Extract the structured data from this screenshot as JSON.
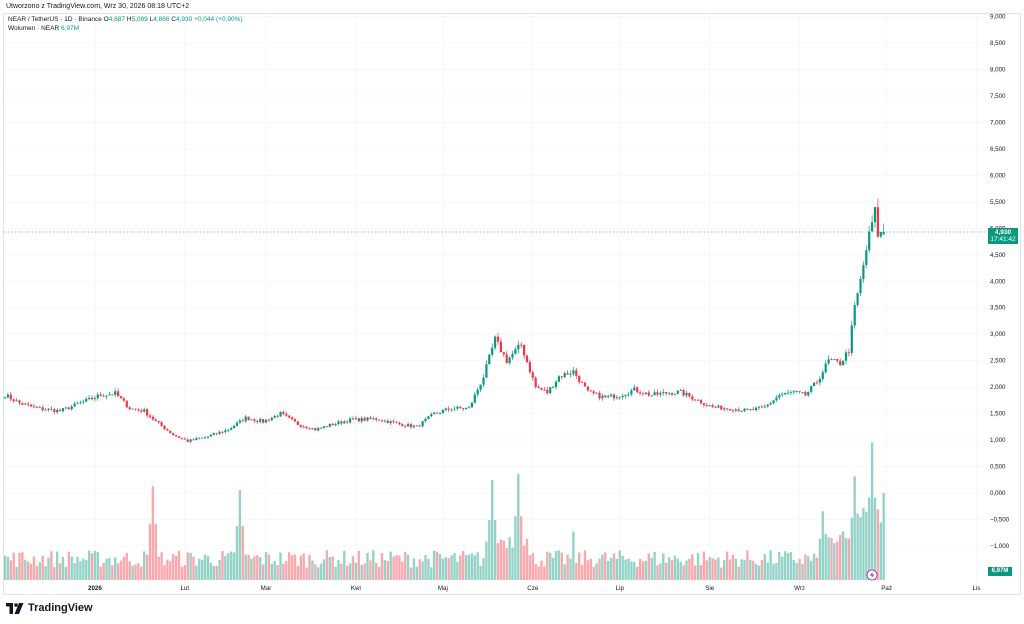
{
  "caption": "Utworzono z TradingView.com, Wrz 30, 2026 08:18 UTC+2",
  "legend": {
    "symbol": "NEAR / TetherUS · 1D · Binance",
    "o_label": "O",
    "o": "4,887",
    "h_label": "H",
    "h": "5,089",
    "l_label": "L",
    "l": "4,866",
    "c_label": "C",
    "c": "4,930",
    "change": "+0,044 (+0,90%)",
    "volume_label": "Wolumen · NEAR",
    "volume_value": "6,97M"
  },
  "last_price_tag": "4,930",
  "countdown": "17:41:42",
  "volume_tag": "6,97M",
  "logo_text": "TradingView",
  "colors": {
    "up": "#089981",
    "down": "#f23645",
    "vol_up": "#95d3c8",
    "vol_down": "#f7a9ae",
    "grid": "#f0f3fa",
    "axis_text": "#131722"
  },
  "icons": [
    "tradingview-logo-icon",
    "lightning-icon"
  ],
  "chart_data": {
    "type": "candlestick",
    "symbol": "NEAR / TetherUS",
    "interval": "1D",
    "exchange": "Binance",
    "y_ticks": [
      "9,000",
      "8,500",
      "8,000",
      "7,500",
      "7,000",
      "6,500",
      "6,000",
      "5,500",
      "5,000",
      "4,500",
      "4,000",
      "3,500",
      "3,000",
      "2,500",
      "2,000",
      "1,500",
      "1,000",
      "0,500",
      "0,000",
      "−0,500",
      "−1,000"
    ],
    "x_ticks": [
      "2026",
      "Lut",
      "Mar",
      "Kwi",
      "Maj",
      "Cze",
      "Lip",
      "Sie",
      "Wrz",
      "Paź",
      "Lis"
    ],
    "anchors": [
      [
        "2025-12-01",
        1.85
      ],
      [
        "2025-12-06",
        1.7
      ],
      [
        "2025-12-12",
        1.6
      ],
      [
        "2025-12-20",
        1.55
      ],
      [
        "2025-12-28",
        1.72
      ],
      [
        "2026-01-03",
        1.85
      ],
      [
        "2026-01-08",
        1.88
      ],
      [
        "2026-01-13",
        1.6
      ],
      [
        "2026-01-18",
        1.55
      ],
      [
        "2026-01-22",
        1.35
      ],
      [
        "2026-01-28",
        1.1
      ],
      [
        "2026-02-02",
        0.98
      ],
      [
        "2026-02-08",
        1.05
      ],
      [
        "2026-02-16",
        1.2
      ],
      [
        "2026-02-22",
        1.42
      ],
      [
        "2026-02-28",
        1.35
      ],
      [
        "2026-03-06",
        1.5
      ],
      [
        "2026-03-12",
        1.3
      ],
      [
        "2026-03-18",
        1.2
      ],
      [
        "2026-03-24",
        1.3
      ],
      [
        "2026-03-30",
        1.38
      ],
      [
        "2026-04-08",
        1.4
      ],
      [
        "2026-04-16",
        1.3
      ],
      [
        "2026-04-22",
        1.25
      ],
      [
        "2026-04-28",
        1.5
      ],
      [
        "2026-05-04",
        1.6
      ],
      [
        "2026-05-10",
        1.6
      ],
      [
        "2026-05-15",
        2.2
      ],
      [
        "2026-05-19",
        2.9
      ],
      [
        "2026-05-23",
        2.5
      ],
      [
        "2026-05-28",
        2.8
      ],
      [
        "2026-06-02",
        2.0
      ],
      [
        "2026-06-06",
        1.9
      ],
      [
        "2026-06-10",
        2.2
      ],
      [
        "2026-06-15",
        2.3
      ],
      [
        "2026-06-20",
        1.9
      ],
      [
        "2026-06-26",
        1.8
      ],
      [
        "2026-07-01",
        1.85
      ],
      [
        "2026-07-06",
        1.95
      ],
      [
        "2026-07-12",
        1.85
      ],
      [
        "2026-07-18",
        1.9
      ],
      [
        "2026-07-22",
        1.9
      ],
      [
        "2026-07-28",
        1.75
      ],
      [
        "2026-08-02",
        1.62
      ],
      [
        "2026-08-08",
        1.6
      ],
      [
        "2026-08-14",
        1.55
      ],
      [
        "2026-08-20",
        1.62
      ],
      [
        "2026-08-25",
        1.85
      ],
      [
        "2026-08-30",
        1.9
      ],
      [
        "2026-09-03",
        1.85
      ],
      [
        "2026-09-07",
        2.1
      ],
      [
        "2026-09-11",
        2.5
      ],
      [
        "2026-09-15",
        2.45
      ],
      [
        "2026-09-18",
        2.7
      ],
      [
        "2026-09-20",
        3.5
      ],
      [
        "2026-09-22",
        4.0
      ],
      [
        "2026-09-24",
        4.6
      ],
      [
        "2026-09-26",
        5.1
      ],
      [
        "2026-09-27",
        5.3
      ],
      [
        "2026-09-28",
        4.9
      ],
      [
        "2026-09-29",
        4.886
      ],
      [
        "2026-09-30",
        4.93
      ]
    ],
    "volume_peaks": [
      [
        "2026-01-21",
        7.5
      ],
      [
        "2026-02-20",
        7.2
      ],
      [
        "2026-05-18",
        8.0
      ],
      [
        "2026-05-27",
        8.5
      ],
      [
        "2026-09-09",
        5.5
      ],
      [
        "2026-09-20",
        8.3
      ],
      [
        "2026-09-26",
        11.0
      ],
      [
        "2026-09-30",
        6.97
      ]
    ],
    "last_close": 4.93,
    "last_volume_millions": 6.97
  }
}
